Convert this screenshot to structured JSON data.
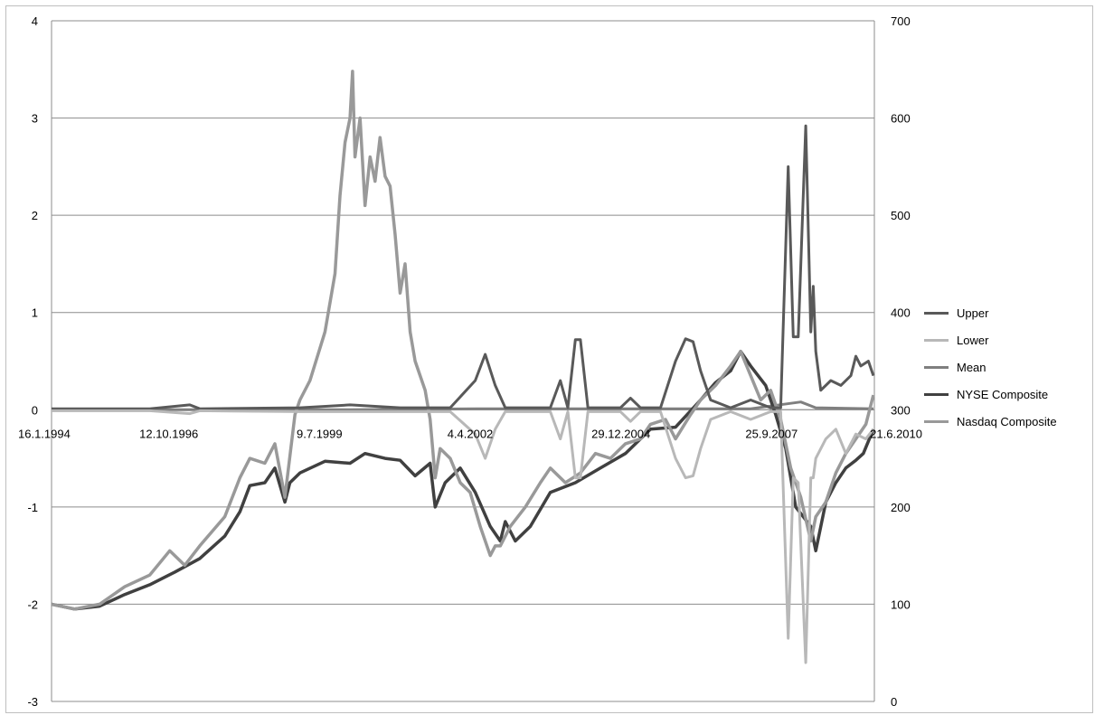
{
  "chart_data": {
    "type": "line",
    "title": "",
    "xlabel": "",
    "ylabel": "",
    "x_tick_labels": [
      "16.1.1994",
      "12.10.1996",
      "9.7.1999",
      "4.4.2002",
      "29.12.2004",
      "25.9.2007",
      "21.6.2010"
    ],
    "x_range": [
      1994.04,
      2010.47
    ],
    "y_left": {
      "range": [
        -3,
        4
      ],
      "ticks": [
        "-3",
        "-2",
        "-1",
        "0",
        "1",
        "2",
        "3",
        "4"
      ]
    },
    "y_right": {
      "range": [
        0,
        700
      ],
      "ticks": [
        "0",
        "100",
        "200",
        "300",
        "400",
        "500",
        "600",
        "700"
      ]
    },
    "grid": true,
    "legend_position": "right",
    "series": [
      {
        "name": "Upper",
        "axis": "left",
        "color": "#595959",
        "points": [
          [
            1994.04,
            0.01
          ],
          [
            1996.0,
            0.01
          ],
          [
            1996.8,
            0.05
          ],
          [
            1997.0,
            0.01
          ],
          [
            1999.0,
            0.02
          ],
          [
            2000.0,
            0.05
          ],
          [
            2001.0,
            0.02
          ],
          [
            2002.0,
            0.02
          ],
          [
            2002.5,
            0.3
          ],
          [
            2002.7,
            0.57
          ],
          [
            2002.9,
            0.25
          ],
          [
            2003.1,
            0.02
          ],
          [
            2004.0,
            0.02
          ],
          [
            2004.2,
            0.3
          ],
          [
            2004.35,
            0.02
          ],
          [
            2004.5,
            0.72
          ],
          [
            2004.6,
            0.72
          ],
          [
            2004.75,
            0.02
          ],
          [
            2005.4,
            0.02
          ],
          [
            2005.6,
            0.12
          ],
          [
            2005.8,
            0.02
          ],
          [
            2006.2,
            0.02
          ],
          [
            2006.5,
            0.5
          ],
          [
            2006.7,
            0.73
          ],
          [
            2006.85,
            0.7
          ],
          [
            2007.0,
            0.4
          ],
          [
            2007.2,
            0.1
          ],
          [
            2007.6,
            0.02
          ],
          [
            2008.0,
            0.1
          ],
          [
            2008.4,
            0.02
          ],
          [
            2008.6,
            0.02
          ],
          [
            2008.75,
            2.5
          ],
          [
            2008.85,
            0.75
          ],
          [
            2008.95,
            0.75
          ],
          [
            2009.1,
            2.92
          ],
          [
            2009.2,
            0.8
          ],
          [
            2009.25,
            1.27
          ],
          [
            2009.3,
            0.6
          ],
          [
            2009.4,
            0.2
          ],
          [
            2009.6,
            0.3
          ],
          [
            2009.8,
            0.25
          ],
          [
            2010.0,
            0.35
          ],
          [
            2010.1,
            0.55
          ],
          [
            2010.2,
            0.45
          ],
          [
            2010.35,
            0.5
          ],
          [
            2010.45,
            0.35
          ]
        ]
      },
      {
        "name": "Lower",
        "axis": "left",
        "color": "#b8b8b8",
        "points": [
          [
            1994.04,
            -0.01
          ],
          [
            1996.0,
            -0.01
          ],
          [
            1996.8,
            -0.04
          ],
          [
            1997.0,
            -0.01
          ],
          [
            1999.0,
            -0.02
          ],
          [
            2002.0,
            -0.02
          ],
          [
            2002.5,
            -0.25
          ],
          [
            2002.7,
            -0.5
          ],
          [
            2002.9,
            -0.2
          ],
          [
            2003.1,
            -0.02
          ],
          [
            2004.0,
            -0.02
          ],
          [
            2004.2,
            -0.3
          ],
          [
            2004.35,
            -0.02
          ],
          [
            2004.5,
            -0.7
          ],
          [
            2004.6,
            -0.7
          ],
          [
            2004.75,
            -0.02
          ],
          [
            2005.4,
            -0.02
          ],
          [
            2005.6,
            -0.12
          ],
          [
            2005.8,
            -0.02
          ],
          [
            2006.2,
            -0.02
          ],
          [
            2006.5,
            -0.5
          ],
          [
            2006.7,
            -0.7
          ],
          [
            2006.85,
            -0.68
          ],
          [
            2007.0,
            -0.4
          ],
          [
            2007.2,
            -0.1
          ],
          [
            2007.6,
            -0.02
          ],
          [
            2008.0,
            -0.1
          ],
          [
            2008.4,
            -0.02
          ],
          [
            2008.6,
            -0.02
          ],
          [
            2008.75,
            -2.35
          ],
          [
            2008.85,
            -0.7
          ],
          [
            2008.95,
            -0.75
          ],
          [
            2009.1,
            -2.6
          ],
          [
            2009.2,
            -0.7
          ],
          [
            2009.25,
            -0.7
          ],
          [
            2009.3,
            -0.5
          ],
          [
            2009.5,
            -0.3
          ],
          [
            2009.7,
            -0.2
          ],
          [
            2009.9,
            -0.45
          ],
          [
            2010.1,
            -0.25
          ],
          [
            2010.3,
            -0.3
          ],
          [
            2010.45,
            -0.2
          ]
        ]
      },
      {
        "name": "Mean",
        "axis": "left",
        "color": "#7f7f7f",
        "points": [
          [
            1994.04,
            0.0
          ],
          [
            2000.0,
            0.0
          ],
          [
            2002.5,
            0.01
          ],
          [
            2004.5,
            0.01
          ],
          [
            2006.7,
            0.01
          ],
          [
            2008.0,
            0.01
          ],
          [
            2009.0,
            0.08
          ],
          [
            2009.3,
            0.02
          ],
          [
            2010.45,
            0.01
          ]
        ]
      },
      {
        "name": "NYSE Composite",
        "axis": "right",
        "color": "#404040",
        "points": [
          [
            1994.04,
            100
          ],
          [
            1994.5,
            95
          ],
          [
            1995.0,
            98
          ],
          [
            1995.5,
            110
          ],
          [
            1996.0,
            120
          ],
          [
            1996.5,
            133
          ],
          [
            1997.0,
            147
          ],
          [
            1997.5,
            170
          ],
          [
            1997.8,
            195
          ],
          [
            1998.0,
            222
          ],
          [
            1998.3,
            225
          ],
          [
            1998.5,
            240
          ],
          [
            1998.7,
            205
          ],
          [
            1998.8,
            225
          ],
          [
            1999.0,
            235
          ],
          [
            1999.5,
            247
          ],
          [
            2000.0,
            245
          ],
          [
            2000.3,
            255
          ],
          [
            2000.7,
            250
          ],
          [
            2001.0,
            248
          ],
          [
            2001.3,
            232
          ],
          [
            2001.6,
            245
          ],
          [
            2001.7,
            200
          ],
          [
            2001.9,
            225
          ],
          [
            2002.2,
            240
          ],
          [
            2002.5,
            215
          ],
          [
            2002.8,
            180
          ],
          [
            2003.0,
            165
          ],
          [
            2003.1,
            185
          ],
          [
            2003.3,
            165
          ],
          [
            2003.6,
            180
          ],
          [
            2004.0,
            215
          ],
          [
            2004.5,
            225
          ],
          [
            2005.0,
            240
          ],
          [
            2005.5,
            255
          ],
          [
            2006.0,
            280
          ],
          [
            2006.5,
            282
          ],
          [
            2007.0,
            310
          ],
          [
            2007.3,
            328
          ],
          [
            2007.6,
            340
          ],
          [
            2007.8,
            360
          ],
          [
            2008.0,
            345
          ],
          [
            2008.3,
            325
          ],
          [
            2008.5,
            295
          ],
          [
            2008.7,
            260
          ],
          [
            2008.9,
            200
          ],
          [
            2009.2,
            180
          ],
          [
            2009.3,
            155
          ],
          [
            2009.5,
            205
          ],
          [
            2009.7,
            225
          ],
          [
            2009.9,
            240
          ],
          [
            2010.1,
            248
          ],
          [
            2010.25,
            255
          ],
          [
            2010.45,
            280
          ]
        ]
      },
      {
        "name": "Nasdaq Composite",
        "axis": "right",
        "color": "#999999",
        "points": [
          [
            1994.04,
            100
          ],
          [
            1994.5,
            95
          ],
          [
            1995.0,
            100
          ],
          [
            1995.5,
            118
          ],
          [
            1996.0,
            130
          ],
          [
            1996.4,
            155
          ],
          [
            1996.7,
            140
          ],
          [
            1997.0,
            160
          ],
          [
            1997.5,
            190
          ],
          [
            1997.8,
            230
          ],
          [
            1998.0,
            250
          ],
          [
            1998.3,
            245
          ],
          [
            1998.5,
            265
          ],
          [
            1998.7,
            210
          ],
          [
            1998.9,
            295
          ],
          [
            1999.0,
            310
          ],
          [
            1999.2,
            330
          ],
          [
            1999.5,
            380
          ],
          [
            1999.7,
            440
          ],
          [
            1999.8,
            520
          ],
          [
            1999.9,
            575
          ],
          [
            2000.0,
            600
          ],
          [
            2000.05,
            648
          ],
          [
            2000.1,
            560
          ],
          [
            2000.2,
            600
          ],
          [
            2000.3,
            510
          ],
          [
            2000.4,
            560
          ],
          [
            2000.5,
            535
          ],
          [
            2000.6,
            580
          ],
          [
            2000.7,
            540
          ],
          [
            2000.8,
            530
          ],
          [
            2000.9,
            480
          ],
          [
            2001.0,
            420
          ],
          [
            2001.1,
            450
          ],
          [
            2001.2,
            380
          ],
          [
            2001.3,
            350
          ],
          [
            2001.5,
            320
          ],
          [
            2001.6,
            290
          ],
          [
            2001.7,
            230
          ],
          [
            2001.8,
            260
          ],
          [
            2002.0,
            250
          ],
          [
            2002.2,
            225
          ],
          [
            2002.4,
            215
          ],
          [
            2002.6,
            180
          ],
          [
            2002.8,
            150
          ],
          [
            2002.9,
            160
          ],
          [
            2003.0,
            160
          ],
          [
            2003.2,
            180
          ],
          [
            2003.5,
            200
          ],
          [
            2003.8,
            225
          ],
          [
            2004.0,
            240
          ],
          [
            2004.3,
            225
          ],
          [
            2004.6,
            235
          ],
          [
            2004.9,
            255
          ],
          [
            2005.2,
            250
          ],
          [
            2005.5,
            265
          ],
          [
            2005.8,
            270
          ],
          [
            2006.0,
            285
          ],
          [
            2006.3,
            290
          ],
          [
            2006.5,
            270
          ],
          [
            2006.8,
            295
          ],
          [
            2007.0,
            310
          ],
          [
            2007.3,
            325
          ],
          [
            2007.6,
            345
          ],
          [
            2007.8,
            360
          ],
          [
            2008.0,
            335
          ],
          [
            2008.2,
            310
          ],
          [
            2008.4,
            320
          ],
          [
            2008.6,
            290
          ],
          [
            2008.8,
            240
          ],
          [
            2009.0,
            210
          ],
          [
            2009.2,
            165
          ],
          [
            2009.3,
            190
          ],
          [
            2009.5,
            205
          ],
          [
            2009.7,
            235
          ],
          [
            2009.9,
            255
          ],
          [
            2010.1,
            270
          ],
          [
            2010.3,
            285
          ],
          [
            2010.45,
            315
          ]
        ]
      }
    ]
  }
}
